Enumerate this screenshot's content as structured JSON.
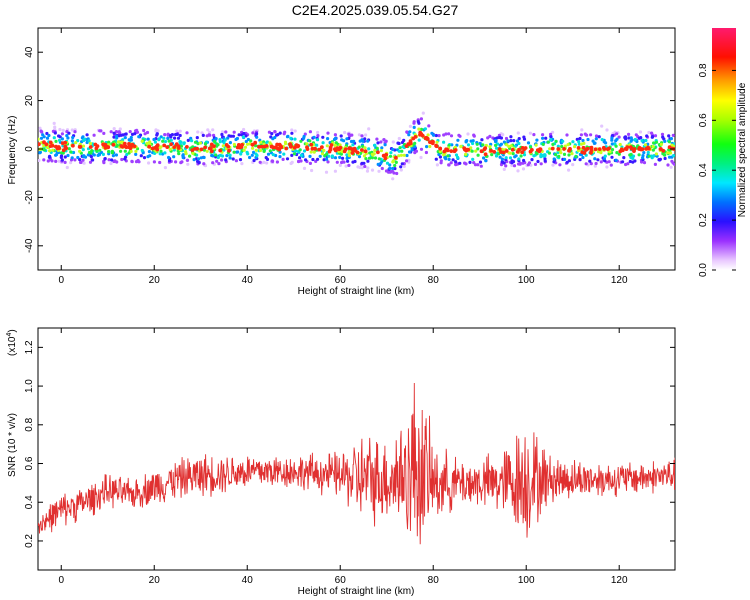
{
  "title": "C2E4.2025.039.05.54.G27",
  "chart_data": [
    {
      "type": "heatmap",
      "xlabel": "Height of straight line (km)",
      "ylabel": "Frequency (Hz)",
      "xlim": [
        -5,
        132
      ],
      "ylim": [
        -50,
        50
      ],
      "xticks": [
        0,
        20,
        40,
        60,
        80,
        100,
        120
      ],
      "yticks": [
        -40,
        -20,
        0,
        20,
        40
      ],
      "colorbar": {
        "label": "Normalized spectral amplitude",
        "range": [
          0.0,
          0.97
        ],
        "ticks": [
          0.0,
          0.2,
          0.4,
          0.6,
          0.8
        ],
        "tick_labels": [
          "0.0",
          "0.2",
          "0.4",
          "0.6",
          "0.8"
        ]
      },
      "ridge": {
        "x": [
          -5,
          0,
          10,
          20,
          30,
          40,
          50,
          60,
          65,
          70,
          72,
          74,
          76,
          77,
          78,
          80,
          82,
          90,
          100,
          110,
          120,
          132
        ],
        "frequency": [
          2,
          1,
          1,
          1,
          0,
          1,
          1,
          0,
          -1,
          -3,
          -4,
          0,
          5,
          7,
          5,
          2,
          0,
          -1,
          0,
          0,
          0,
          0
        ]
      }
    },
    {
      "type": "line",
      "xlabel": "Height of straight line (km)",
      "ylabel": "SNR (10 * v/v)",
      "exponent_label": "(x10",
      "exponent_power": "4",
      "exponent_close": ")",
      "xlim": [
        -5,
        132
      ],
      "ylim": [
        0.05,
        1.3
      ],
      "xticks": [
        0,
        20,
        40,
        60,
        80,
        100,
        120
      ],
      "yticks": [
        0.2,
        0.4,
        0.6,
        0.8,
        1.0,
        1.2
      ],
      "ytick_labels": [
        "0.2",
        "0.4",
        "0.6",
        "0.8",
        "1.0",
        "1.2"
      ],
      "series_color": "#e03030",
      "envelope": {
        "x": [
          -5,
          0,
          5,
          10,
          15,
          20,
          25,
          30,
          40,
          50,
          60,
          65,
          70,
          75,
          76,
          78,
          80,
          85,
          90,
          95,
          100,
          105,
          110,
          120,
          132
        ],
        "center": [
          0.28,
          0.36,
          0.4,
          0.46,
          0.44,
          0.48,
          0.52,
          0.54,
          0.56,
          0.56,
          0.54,
          0.52,
          0.52,
          0.55,
          0.6,
          0.55,
          0.5,
          0.5,
          0.5,
          0.5,
          0.52,
          0.52,
          0.52,
          0.52,
          0.54
        ],
        "amplitude": [
          0.08,
          0.1,
          0.1,
          0.1,
          0.09,
          0.11,
          0.12,
          0.13,
          0.11,
          0.1,
          0.14,
          0.28,
          0.25,
          0.42,
          0.55,
          0.45,
          0.25,
          0.15,
          0.15,
          0.2,
          0.38,
          0.15,
          0.12,
          0.1,
          0.1
        ]
      }
    }
  ]
}
